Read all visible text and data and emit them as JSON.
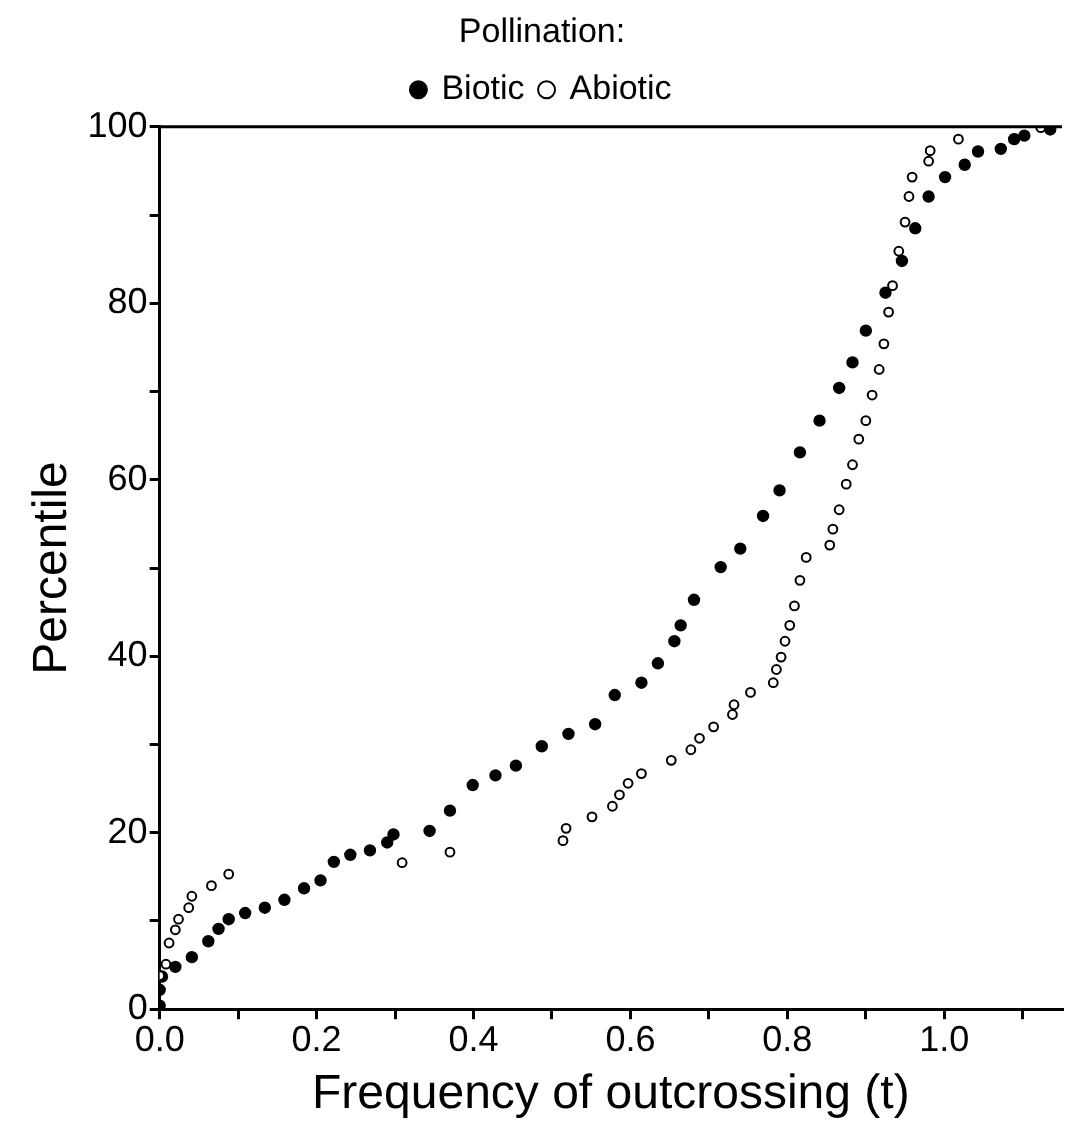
{
  "chart_data": {
    "type": "scatter",
    "legend_title": "Pollination:",
    "xlabel": "Frequency of outcrossing (t)",
    "ylabel": "Percentile",
    "xlim": [
      0,
      1.15
    ],
    "ylim": [
      0,
      100
    ],
    "xticks": [
      {
        "value": 0,
        "label": "0.0"
      },
      {
        "value": 0.1,
        "label": null
      },
      {
        "value": 0.2,
        "label": "0.2"
      },
      {
        "value": 0.3,
        "label": null
      },
      {
        "value": 0.4,
        "label": "0.4"
      },
      {
        "value": 0.5,
        "label": null
      },
      {
        "value": 0.6,
        "label": "0.6"
      },
      {
        "value": 0.7,
        "label": null
      },
      {
        "value": 0.8,
        "label": "0.8"
      },
      {
        "value": 0.9,
        "label": null
      },
      {
        "value": 1.0,
        "label": "1.0"
      },
      {
        "value": 1.1,
        "label": null
      }
    ],
    "yticks": [
      0,
      {
        "value": 10,
        "label": null
      },
      20,
      {
        "value": 30,
        "label": null
      },
      40,
      {
        "value": 50,
        "label": null
      },
      60,
      {
        "value": 70,
        "label": null
      },
      80,
      {
        "value": 90,
        "label": null
      },
      100
    ],
    "grid": false,
    "legend": "top",
    "marker": "circle",
    "series": [
      {
        "name": "Biotic",
        "color": "#000000",
        "x": [
          0.0,
          0.0,
          0.003,
          0.02,
          0.041,
          0.062,
          0.075,
          0.088,
          0.109,
          0.134,
          0.159,
          0.184,
          0.205,
          0.222,
          0.243,
          0.268,
          0.29,
          0.298,
          0.344,
          0.37,
          0.399,
          0.428,
          0.454,
          0.487,
          0.521,
          0.555,
          0.58,
          0.614,
          0.635,
          0.656,
          0.664,
          0.681,
          0.715,
          0.74,
          0.769,
          0.79,
          0.816,
          0.841,
          0.866,
          0.883,
          0.9,
          0.925,
          0.946,
          0.963,
          0.98,
          1.001,
          1.026,
          1.043,
          1.072,
          1.089,
          1.102,
          1.135
        ],
        "values": [
          0.4,
          2.2,
          3.7,
          4.8,
          5.9,
          7.7,
          9.1,
          10.2,
          10.9,
          11.5,
          12.4,
          13.7,
          14.6,
          16.7,
          17.5,
          18.0,
          18.9,
          19.8,
          20.2,
          22.5,
          25.4,
          26.5,
          27.6,
          29.8,
          31.2,
          32.3,
          35.6,
          37.0,
          39.2,
          41.7,
          43.5,
          46.4,
          50.1,
          52.2,
          55.9,
          58.8,
          63.1,
          66.7,
          70.4,
          73.3,
          76.9,
          81.2,
          84.8,
          88.5,
          92.1,
          94.3,
          95.7,
          97.2,
          97.5,
          98.6,
          99.0,
          99.7
        ]
      },
      {
        "name": "Abiotic",
        "color": "#000000",
        "x": [
          0.0,
          0.008,
          0.012,
          0.02,
          0.024,
          0.037,
          0.041,
          0.066,
          0.088,
          0.309,
          0.37,
          0.514,
          0.518,
          0.551,
          0.577,
          0.586,
          0.597,
          0.614,
          0.652,
          0.677,
          0.688,
          0.706,
          0.73,
          0.732,
          0.753,
          0.782,
          0.786,
          0.792,
          0.797,
          0.803,
          0.809,
          0.816,
          0.824,
          0.854,
          0.858,
          0.866,
          0.875,
          0.883,
          0.891,
          0.9,
          0.908,
          0.917,
          0.923,
          0.929,
          0.934,
          0.942,
          0.95,
          0.955,
          0.959,
          0.98,
          0.982,
          1.018,
          1.123
        ],
        "values": [
          3.8,
          5.1,
          7.5,
          9.0,
          10.2,
          11.5,
          12.8,
          14.0,
          15.3,
          16.6,
          17.8,
          19.1,
          20.5,
          21.8,
          23.0,
          24.3,
          25.6,
          26.7,
          28.2,
          29.4,
          30.7,
          32.0,
          33.4,
          34.5,
          35.9,
          37.0,
          38.5,
          39.9,
          41.7,
          43.5,
          45.7,
          48.6,
          51.2,
          52.6,
          54.4,
          56.6,
          59.5,
          61.7,
          64.6,
          66.7,
          69.6,
          72.5,
          75.4,
          79.0,
          82.0,
          85.9,
          89.2,
          92.1,
          94.3,
          96.1,
          97.3,
          98.6,
          99.9
        ]
      }
    ]
  }
}
